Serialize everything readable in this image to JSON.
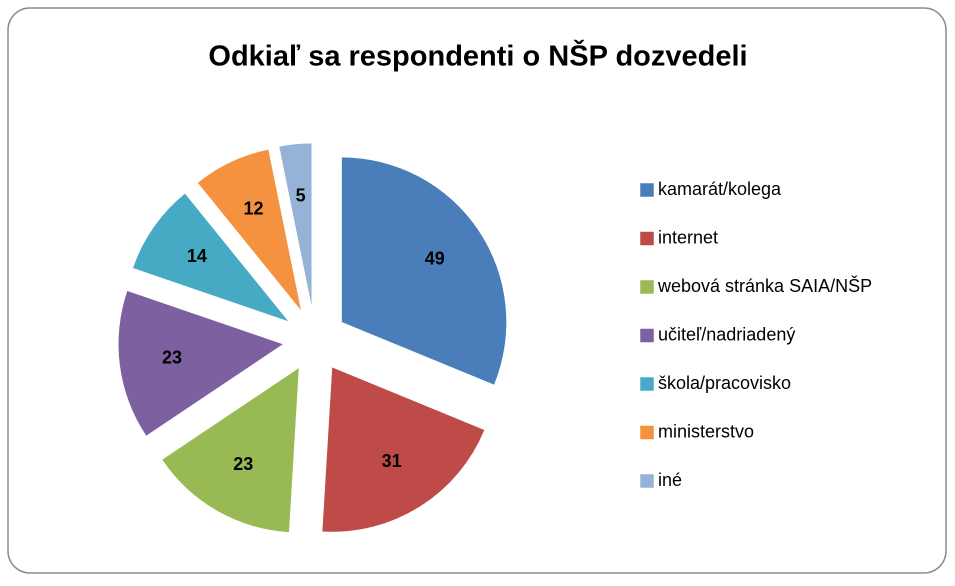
{
  "chart_data": {
    "type": "pie",
    "title": "Odkiaľ sa respondenti o NŠP dozvedeli",
    "categories": [
      "kamarát/kolega",
      "internet",
      "webová stránka SAIA/NŠP",
      "učiteľ/nadriadený",
      "škola/pracovisko",
      "ministerstvo",
      "iné"
    ],
    "values": [
      49,
      31,
      23,
      23,
      14,
      12,
      5
    ],
    "colors": [
      "#4a7ebb",
      "#be4b48",
      "#98b954",
      "#7d60a0",
      "#46aac5",
      "#f59240",
      "#95b3d7"
    ],
    "legend": "right"
  }
}
